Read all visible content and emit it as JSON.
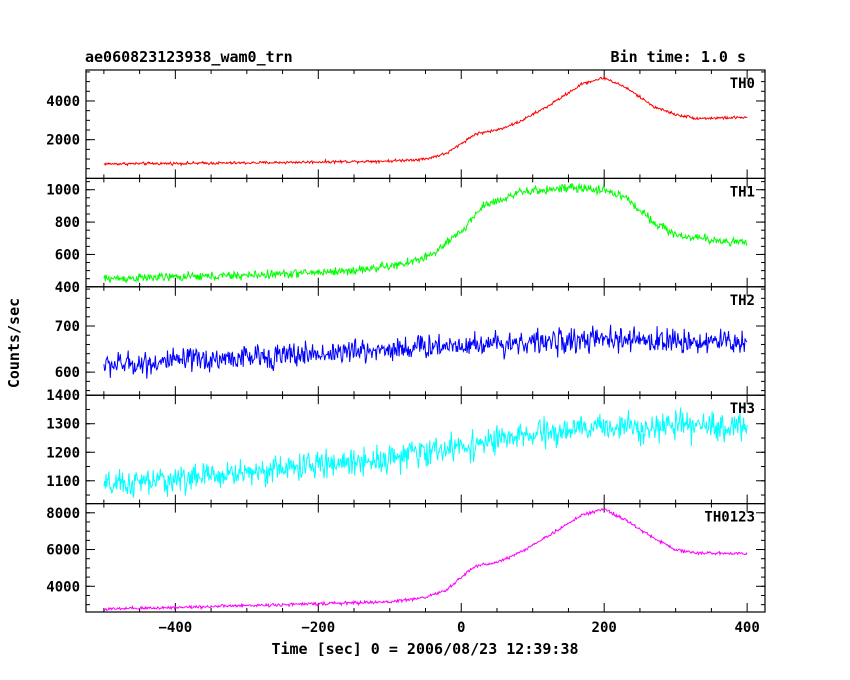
{
  "header": {
    "title": "ae060823123938_wam0_trn",
    "bin_time": "Bin time: 1.0 s"
  },
  "axes": {
    "ylabel": "Counts/sec",
    "xlabel": "Time [sec] 0 = 2006/08/23 12:39:38"
  },
  "chart_data": {
    "type": "line",
    "title": "ae060823123938_wam0_trn",
    "subtitle": "Bin time: 1.0 s",
    "xlabel": "Time [sec] 0 = 2006/08/23 12:39:38",
    "ylabel": "Counts/sec",
    "xlim": [
      -525,
      425
    ],
    "x_ticks": [
      -400,
      -200,
      0,
      200,
      400
    ],
    "grid": false,
    "legend": "none; panel names printed at top-right of each panel",
    "series": [
      {
        "name": "TH0",
        "color": "#ff0000",
        "ylim": [
          0,
          5600
        ],
        "y_ticks": [
          2000,
          4000
        ],
        "noise": 60,
        "x": [
          -500,
          -300,
          -100,
          -50,
          -20,
          0,
          20,
          50,
          80,
          120,
          170,
          200,
          230,
          270,
          300,
          330,
          400
        ],
        "y": [
          750,
          800,
          900,
          1000,
          1300,
          1800,
          2300,
          2500,
          2900,
          3700,
          4900,
          5200,
          4700,
          3700,
          3300,
          3100,
          3150
        ]
      },
      {
        "name": "TH1",
        "color": "#00ff00",
        "ylim": [
          400,
          1070
        ],
        "y_ticks": [
          400,
          600,
          800,
          1000
        ],
        "noise": 22,
        "x": [
          -500,
          -300,
          -150,
          -80,
          -40,
          0,
          30,
          80,
          120,
          150,
          200,
          230,
          270,
          300,
          350,
          400
        ],
        "y": [
          450,
          470,
          500,
          540,
          600,
          740,
          900,
          980,
          1000,
          1010,
          1000,
          950,
          800,
          720,
          690,
          670
        ]
      },
      {
        "name": "TH2",
        "color": "#0000ff",
        "ylim": [
          550,
          785
        ],
        "y_ticks": [
          600,
          700
        ],
        "noise": 22,
        "x": [
          -500,
          -200,
          0,
          200,
          400
        ],
        "y": [
          615,
          640,
          660,
          670,
          665
        ]
      },
      {
        "name": "TH3",
        "color": "#00ffff",
        "ylim": [
          1020,
          1400
        ],
        "y_ticks": [
          1100,
          1200,
          1300,
          1400
        ],
        "noise": 40,
        "x": [
          -500,
          -300,
          -100,
          0,
          100,
          200,
          400
        ],
        "y": [
          1080,
          1130,
          1180,
          1220,
          1260,
          1290,
          1290
        ]
      },
      {
        "name": "TH0123",
        "color": "#ff00ff",
        "ylim": [
          2600,
          8500
        ],
        "y_ticks": [
          4000,
          6000,
          8000
        ],
        "noise": 70,
        "x": [
          -500,
          -300,
          -100,
          -50,
          -20,
          0,
          20,
          50,
          80,
          120,
          170,
          200,
          230,
          270,
          300,
          330,
          400
        ],
        "y": [
          2750,
          2950,
          3150,
          3400,
          3800,
          4500,
          5100,
          5300,
          5800,
          6700,
          7900,
          8200,
          7600,
          6600,
          6000,
          5800,
          5800
        ]
      }
    ]
  }
}
